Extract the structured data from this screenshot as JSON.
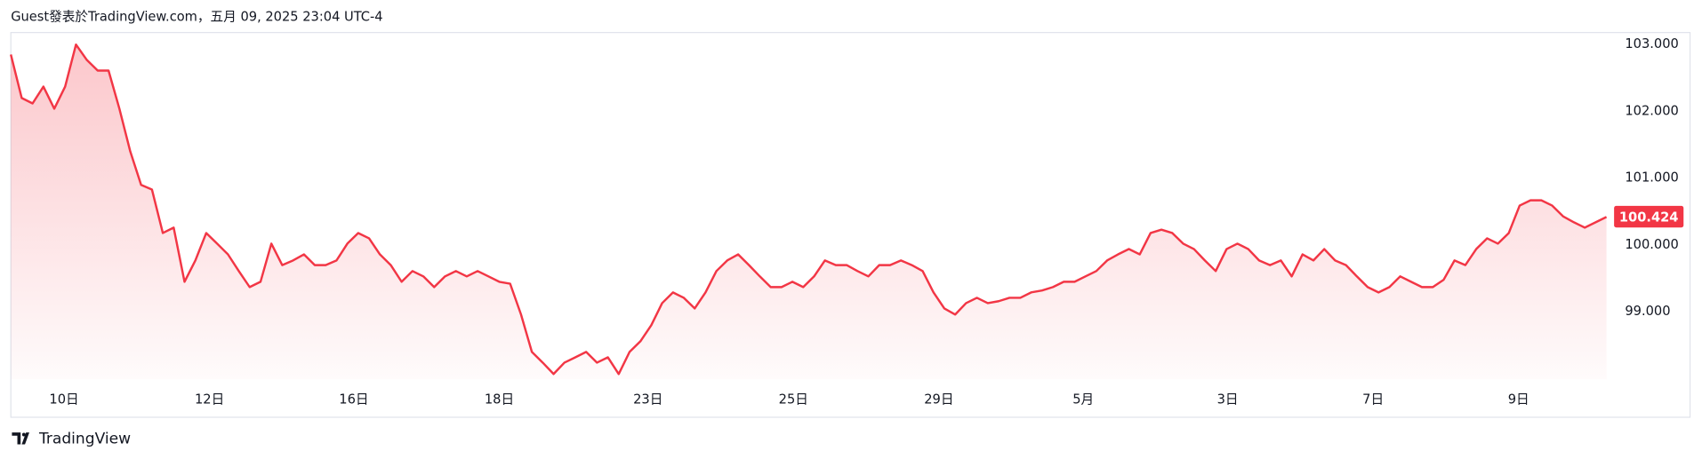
{
  "chart_data": {
    "type": "line",
    "title": "Guest發表於TradingView.com，五月 09, 2025 23:04 UTC-4",
    "source": "TradingView",
    "series": [
      {
        "color": "#f23645",
        "values": [
          102.85,
          102.2,
          102.12,
          102.37,
          102.04,
          102.37,
          103.0,
          102.77,
          102.61,
          102.61,
          102.04,
          101.4,
          100.9,
          100.83,
          100.18,
          100.26,
          99.45,
          99.77,
          100.18,
          100.02,
          99.86,
          99.61,
          99.37,
          99.45,
          100.02,
          99.7,
          99.77,
          99.86,
          99.7,
          99.7,
          99.77,
          100.02,
          100.18,
          100.1,
          99.86,
          99.7,
          99.45,
          99.61,
          99.53,
          99.37,
          99.53,
          99.61,
          99.53,
          99.61,
          99.53,
          99.45,
          99.42,
          98.96,
          98.4,
          98.24,
          98.07,
          98.24,
          98.32,
          98.4,
          98.24,
          98.32,
          98.07,
          98.4,
          98.56,
          98.8,
          99.13,
          99.29,
          99.21,
          99.05,
          99.29,
          99.61,
          99.77,
          99.86,
          99.7,
          99.53,
          99.37,
          99.37,
          99.45,
          99.37,
          99.53,
          99.77,
          99.7,
          99.7,
          99.61,
          99.53,
          99.7,
          99.7,
          99.77,
          99.7,
          99.61,
          99.29,
          99.05,
          98.96,
          99.13,
          99.21,
          99.13,
          99.16,
          99.21,
          99.21,
          99.29,
          99.32,
          99.37,
          99.45,
          99.45,
          99.53,
          99.61,
          99.77,
          99.86,
          99.94,
          99.86,
          100.18,
          100.23,
          100.18,
          100.02,
          99.94,
          99.77,
          99.61,
          99.94,
          100.02,
          99.94,
          99.77,
          99.7,
          99.77,
          99.53,
          99.86,
          99.77,
          99.94,
          99.77,
          99.7,
          99.53,
          99.37,
          99.29,
          99.37,
          99.53,
          99.45,
          99.37,
          99.37,
          99.48,
          99.77,
          99.7,
          99.94,
          100.1,
          100.02,
          100.18,
          100.59,
          100.67,
          100.67,
          100.59,
          100.43,
          100.34,
          100.26,
          100.34,
          100.42
        ]
      }
    ],
    "xlim": [
      0,
      147
    ],
    "xticks": [
      {
        "value": 4.9,
        "label": "10日"
      },
      {
        "value": 18.3,
        "label": "12日"
      },
      {
        "value": 31.6,
        "label": "16日"
      },
      {
        "value": 45,
        "label": "18日"
      },
      {
        "value": 58.7,
        "label": "23日"
      },
      {
        "value": 72.1,
        "label": "25日"
      },
      {
        "value": 85.5,
        "label": "29日"
      },
      {
        "value": 98.8,
        "label": "5月"
      },
      {
        "value": 112.1,
        "label": "3日"
      },
      {
        "value": 125.5,
        "label": "7日"
      },
      {
        "value": 138.9,
        "label": "9日"
      }
    ],
    "ylim": [
      97.99,
      103.18
    ],
    "yticks": [
      {
        "value": 99,
        "label": "99.000"
      },
      {
        "value": 100,
        "label": "100.000"
      },
      {
        "value": 101,
        "label": "101.000"
      },
      {
        "value": 102,
        "label": "102.000"
      },
      {
        "value": 103,
        "label": "103.000"
      }
    ],
    "last_price": 100.424,
    "grid": false
  }
}
